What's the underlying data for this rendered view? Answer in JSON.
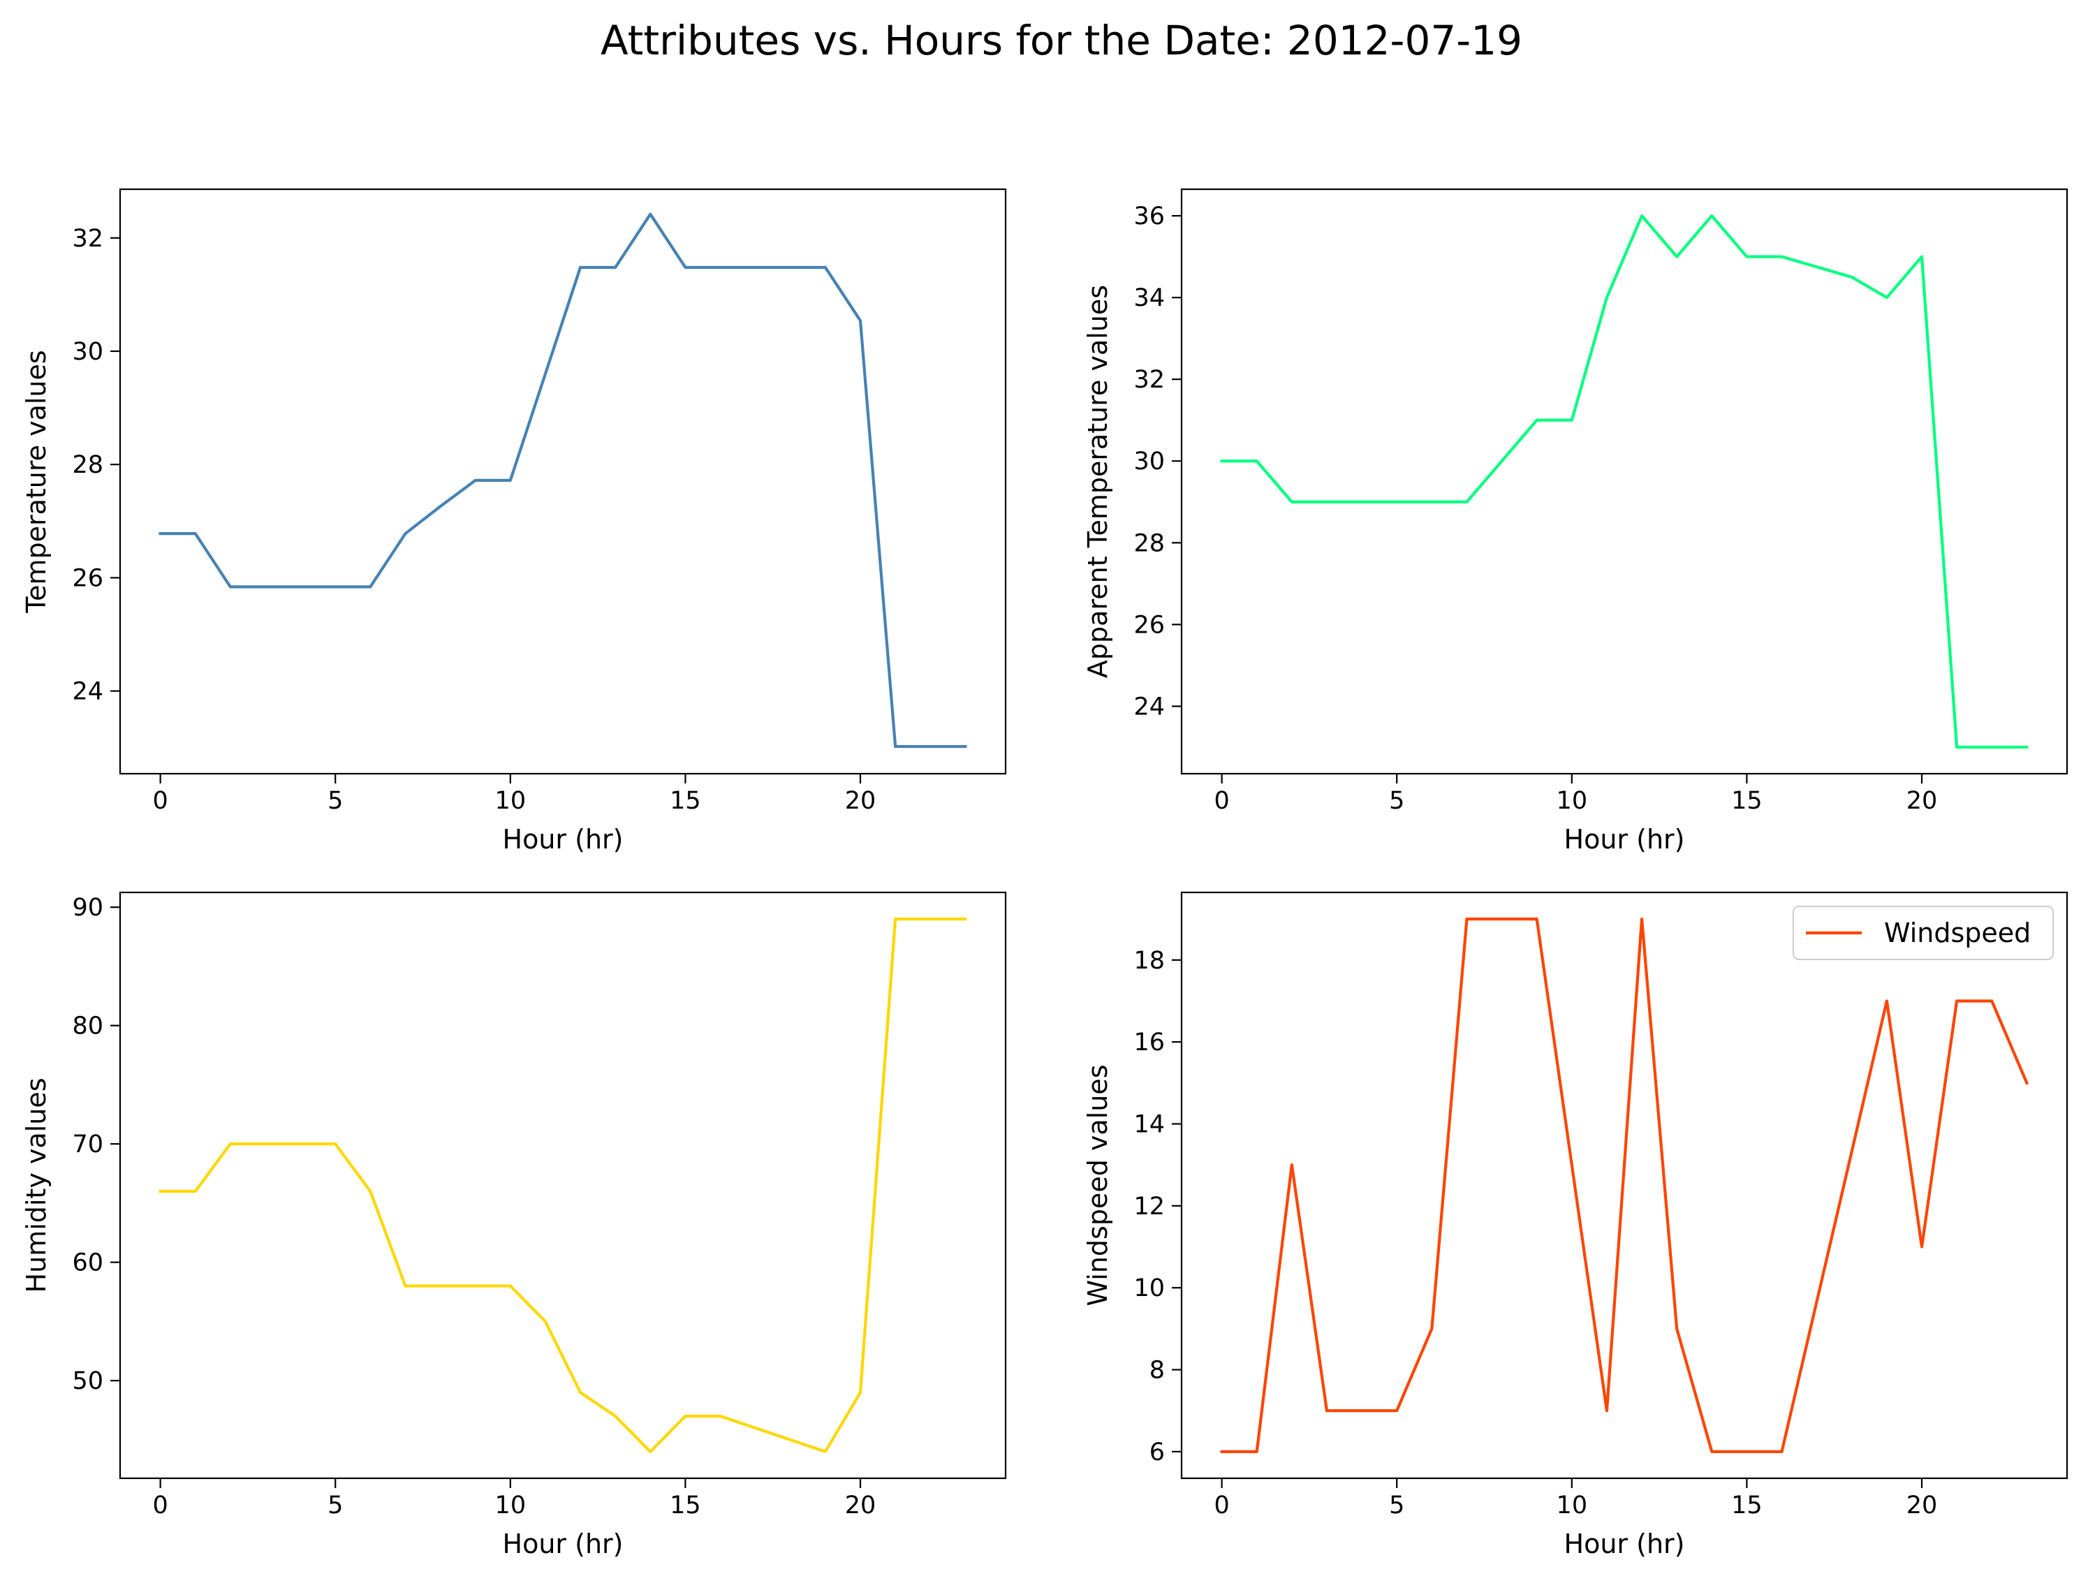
{
  "figure": {
    "title": "Attributes vs. Hours for the Date: 2012-07-19"
  },
  "chart_data": [
    {
      "type": "line",
      "title": "",
      "xlabel": "Hour (hr)",
      "ylabel": "Temperature values",
      "color": "#4682b4",
      "x": [
        0,
        1,
        2,
        3,
        4,
        5,
        6,
        7,
        8,
        9,
        10,
        11,
        12,
        13,
        14,
        15,
        16,
        17,
        18,
        19,
        20,
        21,
        22,
        23
      ],
      "y": [
        26.78,
        26.78,
        25.84,
        25.84,
        25.84,
        25.84,
        25.84,
        26.78,
        27.26,
        27.72,
        27.72,
        29.6,
        31.48,
        31.48,
        32.42,
        31.48,
        31.48,
        31.48,
        31.48,
        31.48,
        30.54,
        23.02,
        23.02,
        23.02
      ],
      "xlim": [
        -1.15,
        24.15
      ],
      "ylim": [
        22.54,
        32.86
      ],
      "xticks": [
        0,
        5,
        10,
        15,
        20
      ],
      "yticks": [
        24,
        26,
        28,
        30,
        32
      ],
      "grid": false,
      "legend": null
    },
    {
      "type": "line",
      "title": "",
      "xlabel": "Hour (hr)",
      "ylabel": "Apparent Temperature values",
      "color": "#00ff7f",
      "x": [
        0,
        1,
        2,
        3,
        4,
        5,
        6,
        7,
        8,
        9,
        10,
        11,
        12,
        13,
        14,
        15,
        16,
        17,
        18,
        19,
        20,
        21,
        22,
        23
      ],
      "y": [
        30,
        30,
        29,
        29,
        29,
        29,
        29,
        29,
        30,
        31,
        31,
        34,
        36,
        35,
        36,
        35,
        35,
        34.75,
        34.5,
        34,
        35,
        23,
        23,
        23
      ],
      "xlim": [
        -1.15,
        24.15
      ],
      "ylim": [
        22.35,
        36.65
      ],
      "xticks": [
        0,
        5,
        10,
        15,
        20
      ],
      "yticks": [
        24,
        26,
        28,
        30,
        32,
        34,
        36
      ],
      "grid": false,
      "legend": null
    },
    {
      "type": "line",
      "title": "",
      "xlabel": "Hour (hr)",
      "ylabel": "Humidity values",
      "color": "#ffd700",
      "x": [
        0,
        1,
        2,
        3,
        4,
        5,
        6,
        7,
        8,
        9,
        10,
        11,
        12,
        13,
        14,
        15,
        16,
        17,
        18,
        19,
        20,
        21,
        22,
        23
      ],
      "y": [
        66,
        66,
        70,
        70,
        70,
        70,
        66,
        58,
        58,
        58,
        58,
        55,
        49,
        47,
        44,
        47,
        47,
        46,
        45,
        44,
        49,
        89,
        89,
        89
      ],
      "xlim": [
        -1.15,
        24.15
      ],
      "ylim": [
        41.75,
        91.25
      ],
      "xticks": [
        0,
        5,
        10,
        15,
        20
      ],
      "yticks": [
        50,
        60,
        70,
        80,
        90
      ],
      "grid": false,
      "legend": null
    },
    {
      "type": "line",
      "title": "",
      "xlabel": "Hour (hr)",
      "ylabel": "Windspeed values",
      "color": "#ff4500",
      "series": [
        {
          "name": "Windspeed",
          "values": [
            6,
            6,
            13,
            7,
            7,
            7,
            9,
            19,
            19,
            19,
            13,
            7,
            19,
            9,
            6,
            6,
            6,
            9.67,
            13.33,
            17,
            11,
            17,
            17,
            15
          ]
        }
      ],
      "x": [
        0,
        1,
        2,
        3,
        4,
        5,
        6,
        7,
        8,
        9,
        10,
        11,
        12,
        13,
        14,
        15,
        16,
        17,
        18,
        19,
        20,
        21,
        22,
        23
      ],
      "xlim": [
        -1.15,
        24.15
      ],
      "ylim": [
        5.35,
        19.65
      ],
      "xticks": [
        0,
        5,
        10,
        15,
        20
      ],
      "yticks": [
        6,
        8,
        10,
        12,
        14,
        16,
        18
      ],
      "grid": false,
      "legend": "upper right"
    }
  ]
}
